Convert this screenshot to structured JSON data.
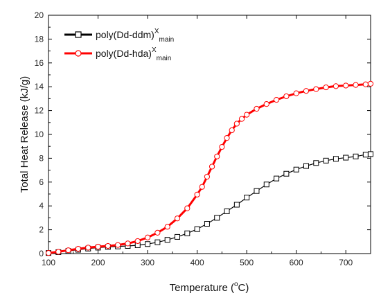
{
  "chart_data": {
    "type": "line",
    "title": "",
    "xlabel": "Temperature (",
    "xlabel_deg": "o",
    "xlabel_unit": "C)",
    "ylabel": "Total Heat Release (kJ/g)",
    "xlim": [
      100,
      750
    ],
    "ylim": [
      0,
      20
    ],
    "xticks": [
      100,
      200,
      300,
      400,
      500,
      600,
      700
    ],
    "yticks": [
      0,
      2,
      4,
      6,
      8,
      10,
      12,
      14,
      16,
      18,
      20
    ],
    "grid": false,
    "legend_position": "top-left",
    "series": [
      {
        "name": "poly(Dd-ddm)",
        "name_sup": "X",
        "name_sub": "main",
        "color": "#000000",
        "marker": "square",
        "x": [
          100,
          120,
          140,
          160,
          180,
          200,
          220,
          240,
          260,
          280,
          300,
          320,
          340,
          360,
          380,
          400,
          420,
          440,
          460,
          480,
          500,
          520,
          540,
          560,
          580,
          600,
          620,
          640,
          660,
          680,
          700,
          720,
          740,
          750
        ],
        "y": [
          0.05,
          0.12,
          0.22,
          0.32,
          0.42,
          0.5,
          0.56,
          0.6,
          0.64,
          0.7,
          0.8,
          0.95,
          1.15,
          1.4,
          1.7,
          2.05,
          2.5,
          3.0,
          3.55,
          4.1,
          4.7,
          5.25,
          5.8,
          6.3,
          6.7,
          7.05,
          7.35,
          7.6,
          7.8,
          7.95,
          8.05,
          8.15,
          8.3,
          8.35
        ]
      },
      {
        "name": "poly(Dd-hda)",
        "name_sup": "X",
        "name_sub": "main",
        "color": "#ff0000",
        "marker": "circle",
        "x": [
          100,
          120,
          140,
          160,
          180,
          200,
          220,
          240,
          260,
          280,
          300,
          320,
          340,
          360,
          380,
          400,
          410,
          420,
          430,
          440,
          450,
          460,
          470,
          480,
          490,
          500,
          520,
          540,
          560,
          580,
          600,
          620,
          640,
          660,
          680,
          700,
          720,
          740,
          750
        ],
        "y": [
          0.05,
          0.15,
          0.28,
          0.4,
          0.5,
          0.58,
          0.64,
          0.72,
          0.85,
          1.05,
          1.35,
          1.75,
          2.25,
          2.95,
          3.8,
          4.95,
          5.6,
          6.45,
          7.3,
          8.15,
          8.95,
          9.7,
          10.35,
          10.9,
          11.3,
          11.65,
          12.15,
          12.55,
          12.9,
          13.2,
          13.45,
          13.65,
          13.8,
          13.95,
          14.05,
          14.1,
          14.15,
          14.2,
          14.25
        ]
      }
    ]
  }
}
